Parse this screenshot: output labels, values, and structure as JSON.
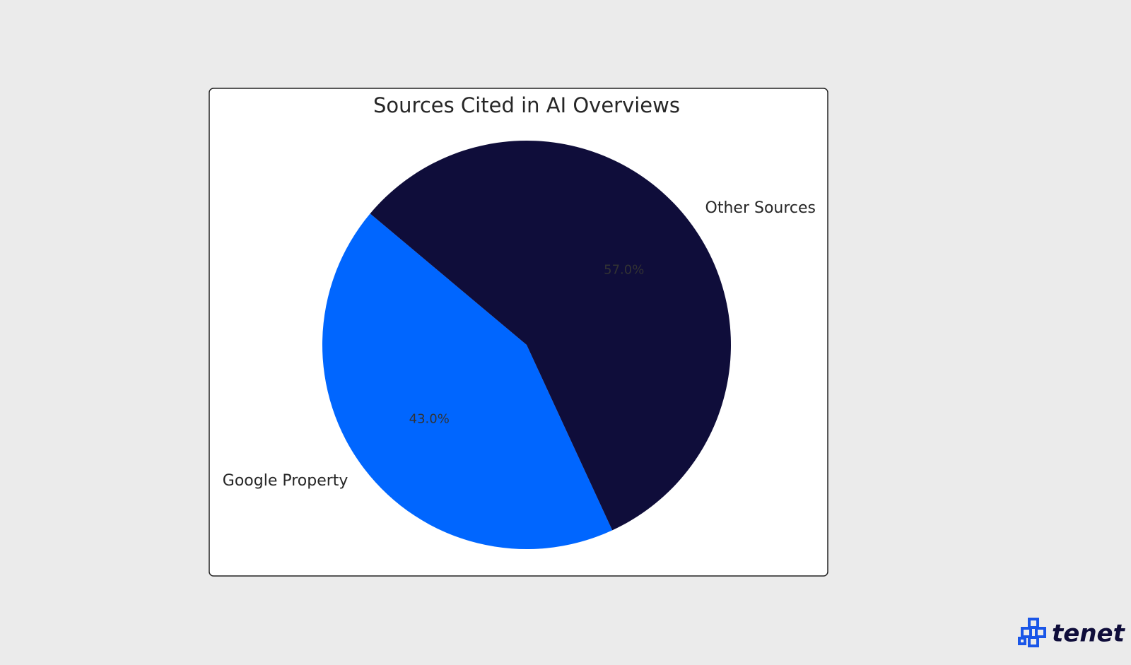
{
  "chart_data": {
    "type": "pie",
    "title": "Sources Cited in AI Overviews",
    "categories": [
      "Google Property",
      "Other Sources"
    ],
    "values": [
      43,
      57
    ],
    "value_labels": [
      "43.0%",
      "57.0%"
    ],
    "colors": [
      "#0066ff",
      "#0f0d3a"
    ]
  },
  "logo": "tenet"
}
